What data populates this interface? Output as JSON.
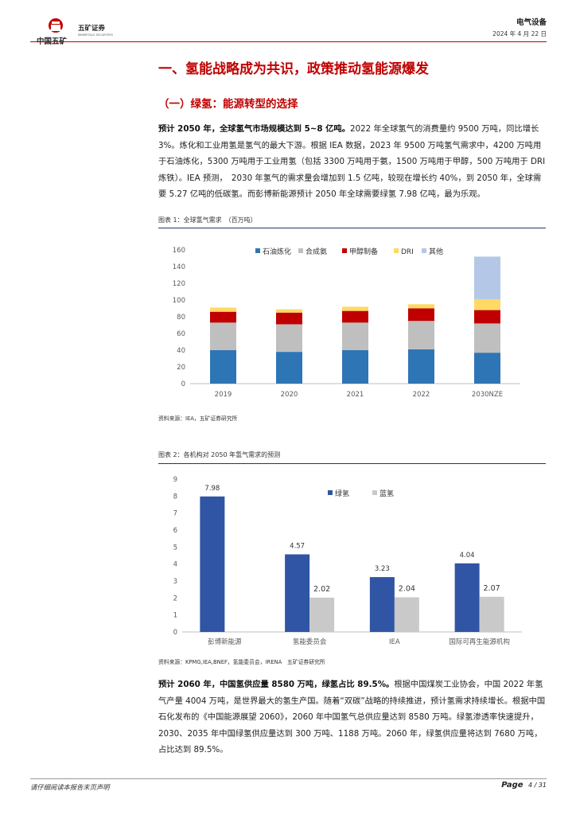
{
  "header": {
    "logo_cn": "中国五矿",
    "logo_broker": "五矿证券",
    "logo_en": "MINMETALS SECURITIES",
    "category": "电气设备",
    "date": "2024 年 4 月 22 日"
  },
  "section": {
    "h1": "一、氢能战略成为共识，政策推动氢能源爆发",
    "h2": "（一）绿氢：能源转型的选择"
  },
  "para1": {
    "lead": "预计 2050 年，全球氢气市场规模达到 5~8 亿吨。",
    "body": "2022 年全球氢气的消费量约 9500 万吨，同比增长 3%。炼化和工业用氢是氢气的最大下游。根据 IEA 数据，2023 年 9500 万吨氢气需求中，4200 万吨用于石油炼化，5300 万吨用于工业用氢（包括 3300 万吨用于氨，1500 万吨用于甲醇，500 万吨用于 DRI 炼铁）。IEA 预测，　2030 年氢气的需求量会增加到 1.5 亿吨，较现在增长约 40%，到 2050 年，全球需要 5.27 亿吨的低碳氢。而彭博新能源预计 2050 年全球需要绿氢 7.98 亿吨，最为乐观。"
  },
  "figure1": {
    "title": "图表 1：全球氢气需求　（百万吨）",
    "source": "资料来源：IEA，五矿证券研究所"
  },
  "figure2": {
    "title": "图表 2：各机构对 2050 年氢气需求的预测",
    "source": "资料来源：KPMG,IEA,BNEF，氢能委员会，IRENA　五矿证券研究所"
  },
  "para2": {
    "lead": "预计 2060 年，中国氢供应量 8580 万吨，绿氢占比 89.5%。",
    "body": "根据中国煤炭工业协会，中国 2022 年氢气产量 4004 万吨，是世界最大的氢生产国。随着“双碳”战略的持续推进，预计氢需求持续增长。根据中国石化发布的《中国能源展望 2060》，2060 年中国氢气总供应量达到 8580 万吨。绿氢渗透率快速提升，2030、2035 年中国绿氢供应量达到 300 万吨、1188 万吨。2060 年，绿氢供应量将达到 7680 万吨，占比达到 89.5%。"
  },
  "footer": {
    "disclaimer": "请仔细阅读本报告末页声明",
    "page_label": "Page",
    "page_num": "4 / 31"
  },
  "chart_data": [
    {
      "type": "bar",
      "stacked": true,
      "categories": [
        "2019",
        "2020",
        "2021",
        "2022",
        "2030NZE"
      ],
      "series": [
        {
          "name": "石油炼化",
          "color": "#2e75b6",
          "values": [
            40,
            38,
            40,
            41,
            37
          ]
        },
        {
          "name": "合成氨",
          "color": "#bfbfbf",
          "values": [
            33,
            33,
            33,
            34,
            35
          ]
        },
        {
          "name": "甲醇制备",
          "color": "#c00000",
          "values": [
            13,
            14,
            14,
            15,
            16
          ]
        },
        {
          "name": "DRI",
          "color": "#ffd966",
          "values": [
            5,
            4,
            5,
            5,
            13
          ]
        },
        {
          "name": "其他",
          "color": "#b4c7e7",
          "values": [
            0,
            0,
            0,
            0,
            51
          ]
        }
      ],
      "ylim": [
        0,
        160
      ],
      "yticks": [
        0,
        20,
        40,
        60,
        80,
        100,
        120,
        140,
        160
      ],
      "legend": "top",
      "grid": false
    },
    {
      "type": "bar",
      "categories": [
        "彭博新能源",
        "氢能委员会",
        "IEA",
        "国际可再生能源机构"
      ],
      "series": [
        {
          "name": "绿氢",
          "color": "#2f55a4",
          "values": [
            7.98,
            4.57,
            3.23,
            4.04
          ],
          "labels": [
            "7.98",
            "4.57",
            "3.23",
            "4.04"
          ]
        },
        {
          "name": "蓝氢",
          "color": "#c9c9c9",
          "values": [
            null,
            2.02,
            2.04,
            2.07
          ],
          "labels": [
            "",
            "2.02",
            "2.04",
            "2.07"
          ]
        }
      ],
      "ylim": [
        0,
        9
      ],
      "yticks": [
        0,
        1,
        2,
        3,
        4,
        5,
        6,
        7,
        8,
        9
      ],
      "legend": "top-right",
      "grid": false
    }
  ]
}
